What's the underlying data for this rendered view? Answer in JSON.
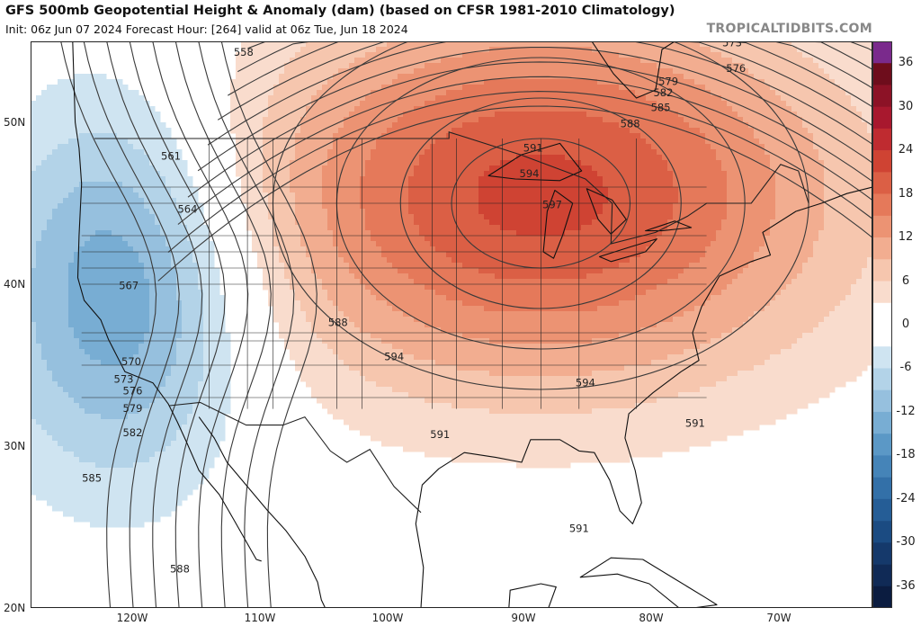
{
  "header": {
    "title": "GFS 500mb Geopotential Height & Anomaly (dam) (based on CFSR 1981-2010 Climatology)",
    "subtitle": "Init: 06z Jun 07 2024   Forecast Hour: [264]   valid at 06z Tue, Jun 18 2024",
    "brand": "TROPICALTIDBITS.COM"
  },
  "axes": {
    "lat_labels": [
      "50N",
      "40N",
      "30N",
      "20N"
    ],
    "lon_labels": [
      "120W",
      "110W",
      "100W",
      "90W",
      "80W",
      "70W"
    ]
  },
  "contour_labels": [
    {
      "text": "573",
      "lon": -73.0,
      "lat": 54.9
    },
    {
      "text": "576",
      "lon": -72.7,
      "lat": 53.3
    },
    {
      "text": "579",
      "lon": -78.0,
      "lat": 52.5
    },
    {
      "text": "582",
      "lon": -78.4,
      "lat": 51.8
    },
    {
      "text": "585",
      "lon": -78.6,
      "lat": 50.9
    },
    {
      "text": "588",
      "lon": -81.0,
      "lat": 49.9
    },
    {
      "text": "591",
      "lon": -88.6,
      "lat": 48.4
    },
    {
      "text": "594",
      "lon": -88.9,
      "lat": 46.8
    },
    {
      "text": "597",
      "lon": -87.1,
      "lat": 44.9
    },
    {
      "text": "558",
      "lon": -111.3,
      "lat": 54.3
    },
    {
      "text": "561",
      "lon": -117.0,
      "lat": 47.9
    },
    {
      "text": "564",
      "lon": -115.7,
      "lat": 44.6
    },
    {
      "text": "567",
      "lon": -120.3,
      "lat": 39.9
    },
    {
      "text": "570",
      "lon": -120.1,
      "lat": 35.2
    },
    {
      "text": "573",
      "lon": -120.7,
      "lat": 34.1
    },
    {
      "text": "576",
      "lon": -120.0,
      "lat": 33.4
    },
    {
      "text": "579",
      "lon": -120.0,
      "lat": 32.3
    },
    {
      "text": "582",
      "lon": -120.0,
      "lat": 30.8
    },
    {
      "text": "585",
      "lon": -123.2,
      "lat": 28.0
    },
    {
      "text": "588",
      "lon": -103.9,
      "lat": 37.6
    },
    {
      "text": "594",
      "lon": -99.5,
      "lat": 35.5
    },
    {
      "text": "594",
      "lon": -84.5,
      "lat": 33.9
    },
    {
      "text": "591",
      "lon": -95.9,
      "lat": 30.7
    },
    {
      "text": "591",
      "lon": -75.9,
      "lat": 31.4
    },
    {
      "text": "591",
      "lon": -85.0,
      "lat": 24.9
    },
    {
      "text": "588",
      "lon": -116.3,
      "lat": 22.4
    }
  ],
  "colorbar": {
    "ticks": [
      36,
      30,
      24,
      18,
      12,
      6,
      0,
      -6,
      -12,
      -18,
      -24,
      -30,
      -36
    ],
    "tick_labels": [
      "36",
      "30",
      "24",
      "18",
      "12",
      "6",
      "0",
      "-6",
      "-12",
      "-18",
      "-24",
      "-30",
      "-36"
    ],
    "range": [
      -39,
      39
    ],
    "bands": [
      {
        "from": 36,
        "to": 39,
        "color": "#7a2a8c"
      },
      {
        "from": 33,
        "to": 36,
        "color": "#6e0d1c"
      },
      {
        "from": 30,
        "to": 33,
        "color": "#8c1226"
      },
      {
        "from": 27,
        "to": 30,
        "color": "#a8182e"
      },
      {
        "from": 24,
        "to": 27,
        "color": "#bf2b30"
      },
      {
        "from": 21,
        "to": 24,
        "color": "#cf4333"
      },
      {
        "from": 18,
        "to": 21,
        "color": "#db5f45"
      },
      {
        "from": 15,
        "to": 18,
        "color": "#e5795a"
      },
      {
        "from": 12,
        "to": 15,
        "color": "#ec9373"
      },
      {
        "from": 9,
        "to": 12,
        "color": "#f2ad90"
      },
      {
        "from": 6,
        "to": 9,
        "color": "#f6c6ae"
      },
      {
        "from": 3,
        "to": 6,
        "color": "#f9dccd"
      },
      {
        "from": -3,
        "to": 3,
        "color": "#ffffff"
      },
      {
        "from": -6,
        "to": -3,
        "color": "#cfe4f1"
      },
      {
        "from": -9,
        "to": -6,
        "color": "#b3d3e8"
      },
      {
        "from": -12,
        "to": -9,
        "color": "#96c0de"
      },
      {
        "from": -15,
        "to": -12,
        "color": "#78add3"
      },
      {
        "from": -18,
        "to": -15,
        "color": "#5b98c6"
      },
      {
        "from": -21,
        "to": -18,
        "color": "#4584b8"
      },
      {
        "from": -24,
        "to": -21,
        "color": "#3370a8"
      },
      {
        "from": -27,
        "to": -24,
        "color": "#255d96"
      },
      {
        "from": -30,
        "to": -27,
        "color": "#1b4b82"
      },
      {
        "from": -33,
        "to": -30,
        "color": "#15396b"
      },
      {
        "from": -36,
        "to": -33,
        "color": "#102a56"
      },
      {
        "from": -39,
        "to": -36,
        "color": "#0b1c40"
      }
    ]
  },
  "map": {
    "extent": {
      "lon": [
        -128,
        -62
      ],
      "lat": [
        20,
        55
      ]
    },
    "projection": "equirectangular",
    "anomaly_centers": [
      {
        "name": "great-lakes-ridge",
        "lon": -88,
        "lat": 45.5,
        "rx_deg": 28,
        "ry_deg": 14,
        "peak": 22
      },
      {
        "name": "west-coast-trough",
        "lon": -121,
        "lat": 40,
        "rx_deg": 12,
        "ry_deg": 14,
        "peak": -16
      }
    ],
    "colors": {
      "ocean": "#ffffff",
      "coast": "#111111",
      "border": "#222222",
      "contour": "#3a3a3a"
    }
  }
}
